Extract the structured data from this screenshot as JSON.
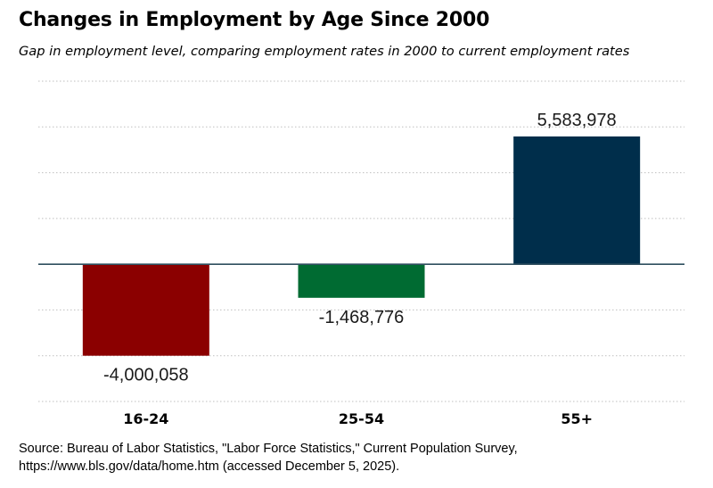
{
  "title": "Changes in Employment by Age Since 2000",
  "subtitle": "Gap in employment level, comparing employment rates in 2000 to current employment rates",
  "source": {
    "line1": "Source: Bureau of Labor Statistics, \"Labor Force Statistics,\" Current Population Survey,",
    "line2": "https://www.bls.gov/data/home.htm (accessed December 5, 2025)."
  },
  "chart_data": {
    "type": "bar",
    "categories": [
      "16-24",
      "25-54",
      "55+"
    ],
    "values": [
      -4000058,
      -1468776,
      5583978
    ],
    "value_labels": [
      "-4,000,058",
      "-1,468,776",
      "5,583,978"
    ],
    "colors": [
      "#8B0000",
      "#006B32",
      "#002E4B"
    ],
    "title": "Changes in Employment by Age Since 2000",
    "xlabel": "",
    "ylabel": "",
    "ylim": [
      -6000000,
      8000000
    ],
    "grid": true,
    "y_axis_labels_shown": false,
    "legend": "none"
  }
}
